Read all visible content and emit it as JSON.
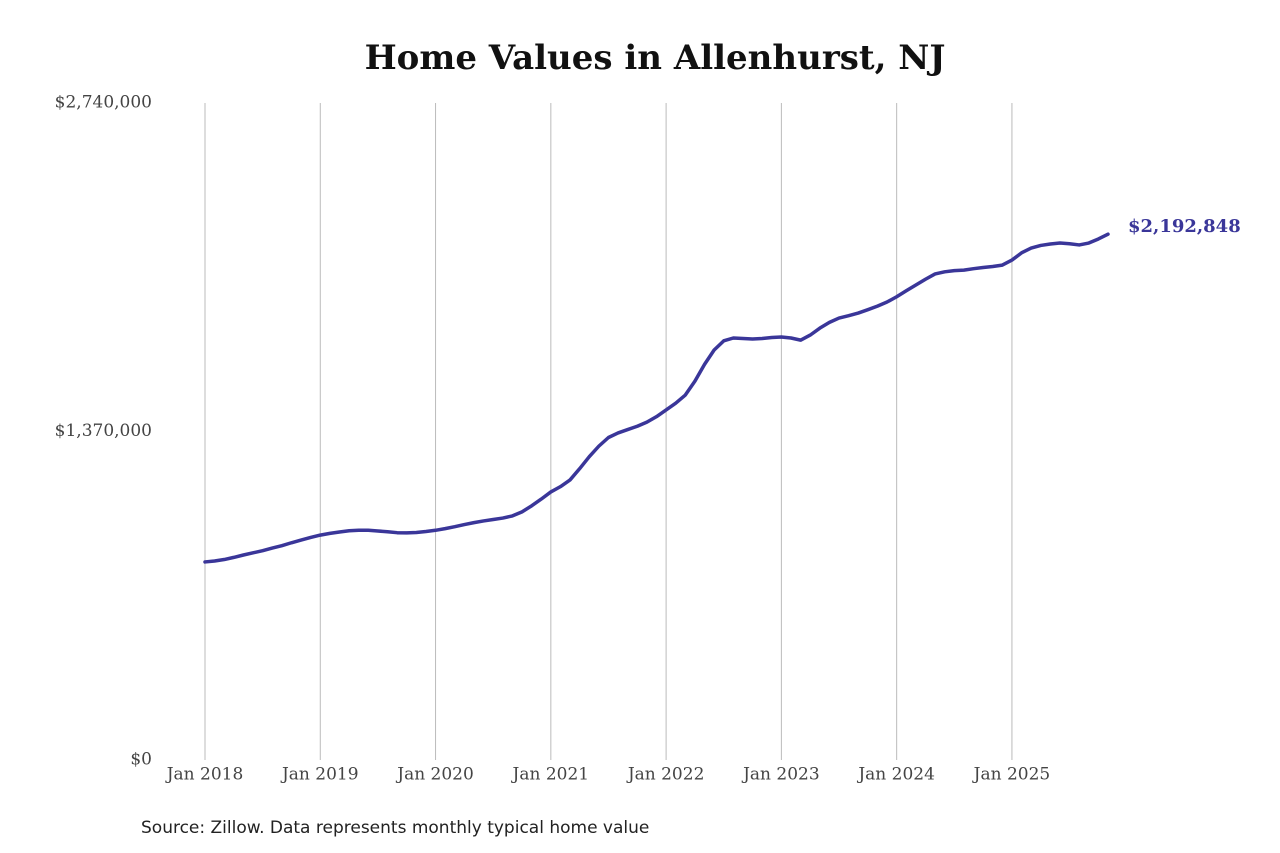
{
  "chart_data": {
    "type": "line",
    "title": "Home Values in Allenhurst, NJ",
    "source": "Source: Zillow. Data represents monthly typical home value",
    "x": [
      "2018-01",
      "2018-02",
      "2018-03",
      "2018-04",
      "2018-05",
      "2018-06",
      "2018-07",
      "2018-08",
      "2018-09",
      "2018-10",
      "2018-11",
      "2018-12",
      "2019-01",
      "2019-02",
      "2019-03",
      "2019-04",
      "2019-05",
      "2019-06",
      "2019-07",
      "2019-08",
      "2019-09",
      "2019-10",
      "2019-11",
      "2019-12",
      "2020-01",
      "2020-02",
      "2020-03",
      "2020-04",
      "2020-05",
      "2020-06",
      "2020-07",
      "2020-08",
      "2020-09",
      "2020-10",
      "2020-11",
      "2020-12",
      "2021-01",
      "2021-02",
      "2021-03",
      "2021-04",
      "2021-05",
      "2021-06",
      "2021-07",
      "2021-08",
      "2021-09",
      "2021-10",
      "2021-11",
      "2021-12",
      "2022-01",
      "2022-02",
      "2022-03",
      "2022-04",
      "2022-05",
      "2022-06",
      "2022-07",
      "2022-08",
      "2022-09",
      "2022-10",
      "2022-11",
      "2022-12",
      "2023-01",
      "2023-02",
      "2023-03",
      "2023-04",
      "2023-05",
      "2023-06",
      "2023-07",
      "2023-08",
      "2023-09",
      "2023-10",
      "2023-11",
      "2023-12",
      "2024-01",
      "2024-02",
      "2024-03",
      "2024-04",
      "2024-05",
      "2024-06",
      "2024-07",
      "2024-08",
      "2024-09",
      "2024-10",
      "2024-11",
      "2024-12",
      "2025-01",
      "2025-02",
      "2025-03",
      "2025-04",
      "2025-05",
      "2025-06",
      "2025-07",
      "2025-08",
      "2025-09",
      "2025-10",
      "2025-11"
    ],
    "series": [
      {
        "color": "#3a3699",
        "values": [
          826000,
          830000,
          836000,
          845000,
          855000,
          864000,
          873000,
          884000,
          894000,
          906000,
          917000,
          928000,
          938000,
          945000,
          951000,
          956000,
          958000,
          958000,
          955000,
          952000,
          948000,
          947000,
          949000,
          953000,
          958000,
          965000,
          973000,
          982000,
          990000,
          997000,
          1003000,
          1009000,
          1018000,
          1035000,
          1060000,
          1088000,
          1118000,
          1140000,
          1168000,
          1215000,
          1265000,
          1309000,
          1345000,
          1364000,
          1378000,
          1392000,
          1409000,
          1432000,
          1460000,
          1488000,
          1522000,
          1580000,
          1650000,
          1710000,
          1748000,
          1760000,
          1758000,
          1756000,
          1758000,
          1762000,
          1764000,
          1760000,
          1751000,
          1772000,
          1801000,
          1825000,
          1843000,
          1853000,
          1864000,
          1878000,
          1893000,
          1910000,
          1932000,
          1957000,
          1981000,
          2005000,
          2027000,
          2036000,
          2041000,
          2043000,
          2049000,
          2054000,
          2058000,
          2064000,
          2085000,
          2115000,
          2135000,
          2146000,
          2152000,
          2156000,
          2153000,
          2148000,
          2156000,
          2173000,
          2192848
        ],
        "value_labels": [
          null,
          null,
          null,
          null,
          null,
          null,
          null,
          null,
          null,
          null,
          null,
          null,
          null,
          null,
          null,
          null,
          null,
          null,
          null,
          null,
          null,
          null,
          null,
          null,
          null,
          null,
          null,
          null,
          null,
          null,
          null,
          null,
          null,
          null,
          null,
          null,
          null,
          null,
          null,
          null,
          null,
          null,
          null,
          null,
          null,
          null,
          null,
          null,
          null,
          null,
          null,
          null,
          null,
          null,
          null,
          null,
          null,
          null,
          null,
          null,
          null,
          null,
          null,
          null,
          null,
          null,
          null,
          null,
          null,
          null,
          null,
          null,
          null,
          null,
          null,
          null,
          null,
          null,
          null,
          null,
          null,
          null,
          null,
          null,
          null,
          null,
          null,
          null,
          null,
          null,
          null,
          null,
          null,
          null,
          "$2,192,848"
        ]
      }
    ],
    "xlim": [
      "2018-01",
      "2025-11"
    ],
    "xticks": [
      {
        "value": "2018-01",
        "label": "Jan 2018"
      },
      {
        "value": "2019-01",
        "label": "Jan 2019"
      },
      {
        "value": "2020-01",
        "label": "Jan 2020"
      },
      {
        "value": "2021-01",
        "label": "Jan 2021"
      },
      {
        "value": "2022-01",
        "label": "Jan 2022"
      },
      {
        "value": "2023-01",
        "label": "Jan 2023"
      },
      {
        "value": "2024-01",
        "label": "Jan 2024"
      },
      {
        "value": "2025-01",
        "label": "Jan 2025"
      }
    ],
    "ylim": [
      0,
      2740000
    ],
    "yticks": [
      {
        "value": 0,
        "label": "$0"
      },
      {
        "value": 1370000,
        "label": "$1,370,000"
      },
      {
        "value": 2740000,
        "label": "$2,740,000"
      }
    ],
    "grid": "x"
  }
}
